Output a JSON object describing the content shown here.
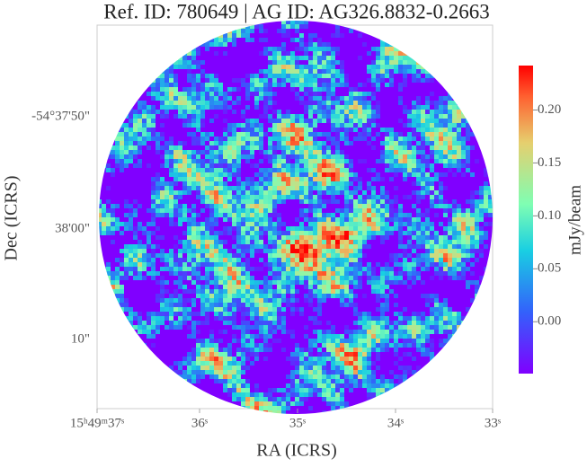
{
  "chart_data": {
    "type": "image",
    "title": "Ref. ID: 780649 | AG ID: AG326.8832-0.2663",
    "xlabel": "RA (ICRS)",
    "ylabel": "Dec (ICRS)",
    "xtick_labels": [
      "15ʰ49ᵐ37ˢ",
      "36ˢ",
      "35ˢ",
      "34ˢ",
      "33ˢ"
    ],
    "ytick_labels": [
      "-54°37'50\"",
      "38'00\"",
      "10\""
    ],
    "colorbar": {
      "label": "mJy/beam",
      "colormap": "rainbow",
      "lim": [
        -0.049,
        0.242
      ],
      "ticks": [
        {
          "value": 0,
          "label": "0.00"
        },
        {
          "value": 0.05,
          "label": "0.05"
        },
        {
          "value": 0.1,
          "label": "0.10"
        },
        {
          "value": 0.15,
          "label": "0.15"
        },
        {
          "value": 0.2,
          "label": "0.20"
        }
      ]
    }
  }
}
